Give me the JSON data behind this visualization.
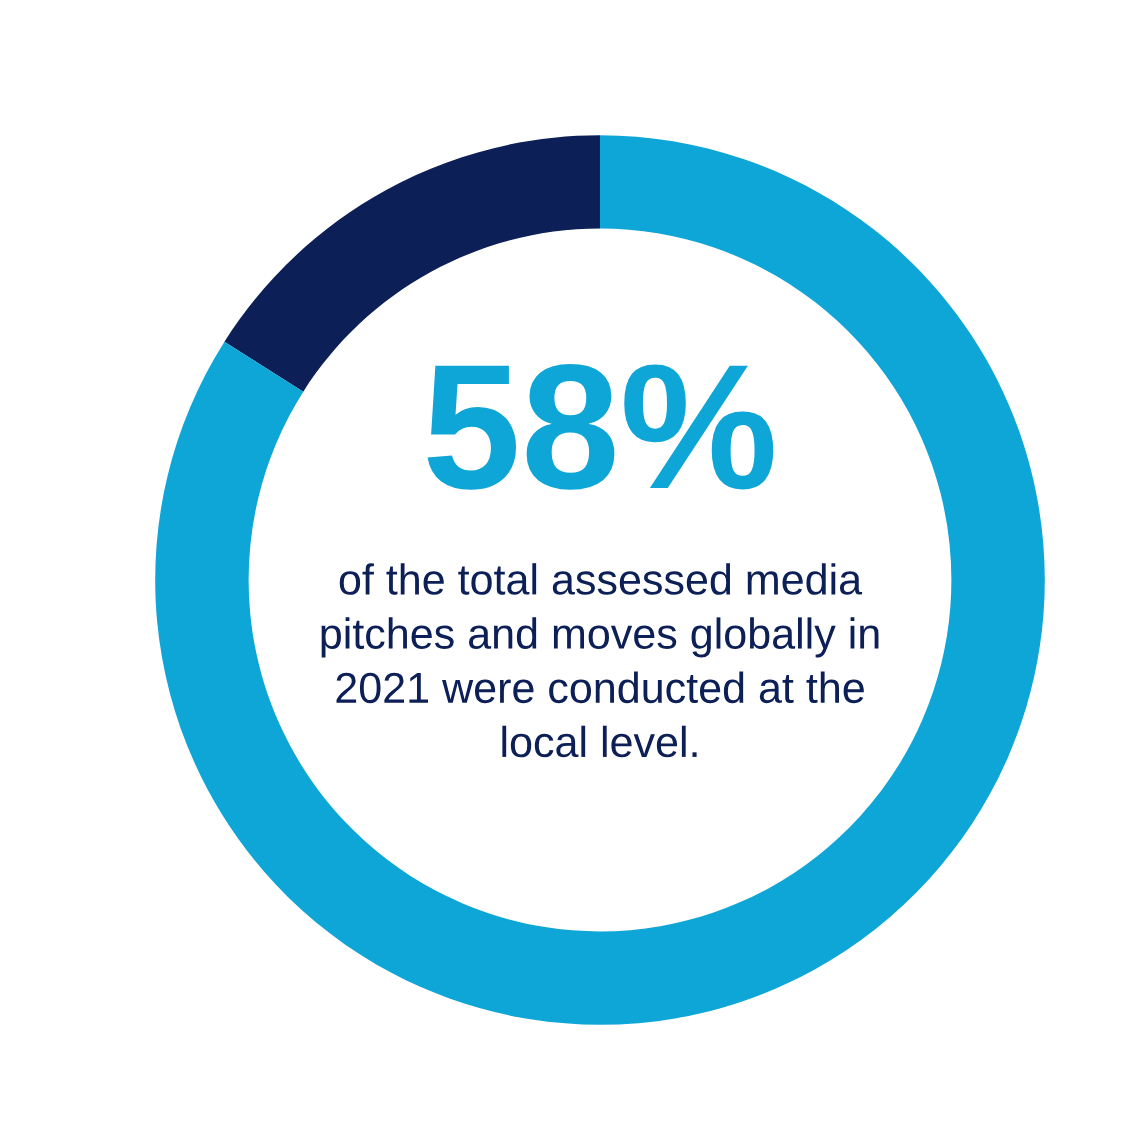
{
  "chart_data": {
    "type": "donut",
    "categories": [
      null,
      null
    ],
    "values": [
      16,
      84
    ],
    "colors": [
      "#0c1f56",
      "#0ea5d7"
    ],
    "annotations": [
      "58%",
      "of the total assessed media\npitches and moves globally in\n2021 were conducted at the\nlocal level."
    ]
  }
}
